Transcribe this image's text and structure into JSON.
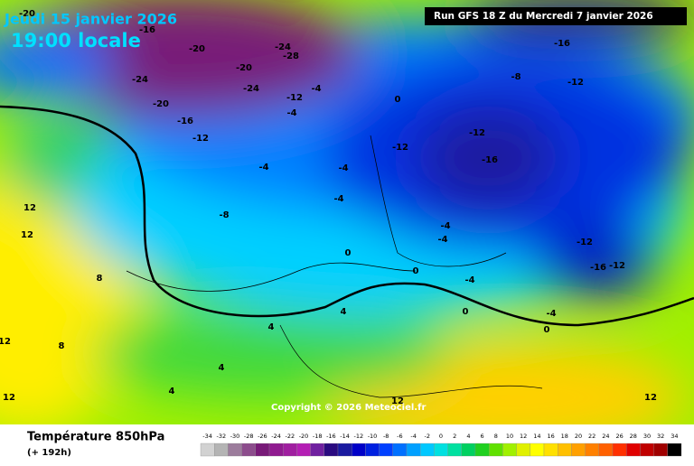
{
  "header": {
    "date": "Jeudi 15 janvier 2026",
    "time": "19:00 locale",
    "run": "Run GFS 18 Z du Mercredi 7 janvier 2026"
  },
  "copyright": "Copyright © 2026 Meteociel.fr",
  "footer": {
    "title": "Température 850hPa",
    "subtitle": "(+ 192h)"
  },
  "map_labels": [
    -20,
    -16,
    -20,
    -24,
    -20,
    -16,
    -12,
    -20,
    -24,
    -24,
    -28,
    -12,
    -4,
    -4,
    -4,
    -8,
    -4,
    -4,
    0,
    0,
    -12,
    -12,
    -16,
    -8,
    -12,
    -16,
    -12,
    -16,
    -12,
    12,
    12,
    8,
    12,
    12,
    8,
    4,
    4,
    4,
    4,
    12,
    12,
    0,
    0,
    0,
    -4,
    -4,
    -4,
    -4
  ],
  "scale": [
    {
      "value": -34,
      "color": "#d2d2d2"
    },
    {
      "value": -32,
      "color": "#b4b4b4"
    },
    {
      "value": -30,
      "color": "#9c7c9c"
    },
    {
      "value": -28,
      "color": "#8c4c8c"
    },
    {
      "value": -26,
      "color": "#781a78"
    },
    {
      "value": -24,
      "color": "#901a90"
    },
    {
      "value": -22,
      "color": "#a01ea0"
    },
    {
      "value": -20,
      "color": "#b41eb4"
    },
    {
      "value": -18,
      "color": "#7020a0"
    },
    {
      "value": -16,
      "color": "#2a0a80"
    },
    {
      "value": -14,
      "color": "#1a1aa0"
    },
    {
      "value": -12,
      "color": "#0000c8"
    },
    {
      "value": -10,
      "color": "#0020e0"
    },
    {
      "value": -8,
      "color": "#0040ff"
    },
    {
      "value": -6,
      "color": "#0070ff"
    },
    {
      "value": -4,
      "color": "#00a0ff"
    },
    {
      "value": -2,
      "color": "#00c8ff"
    },
    {
      "value": 0,
      "color": "#00e0e0"
    },
    {
      "value": 2,
      "color": "#00e0a0"
    },
    {
      "value": 4,
      "color": "#00d060"
    },
    {
      "value": 6,
      "color": "#20d020"
    },
    {
      "value": 8,
      "color": "#60e000"
    },
    {
      "value": 10,
      "color": "#a0f000"
    },
    {
      "value": 12,
      "color": "#e0f000"
    },
    {
      "value": 14,
      "color": "#ffff00"
    },
    {
      "value": 16,
      "color": "#ffe000"
    },
    {
      "value": 18,
      "color": "#ffc000"
    },
    {
      "value": 20,
      "color": "#ffa000"
    },
    {
      "value": 22,
      "color": "#ff8000"
    },
    {
      "value": 24,
      "color": "#ff6000"
    },
    {
      "value": 26,
      "color": "#ff3000"
    },
    {
      "value": 28,
      "color": "#e00000"
    },
    {
      "value": 30,
      "color": "#c00000"
    },
    {
      "value": 32,
      "color": "#a00000"
    },
    {
      "value": 34,
      "color": "#000000"
    }
  ]
}
